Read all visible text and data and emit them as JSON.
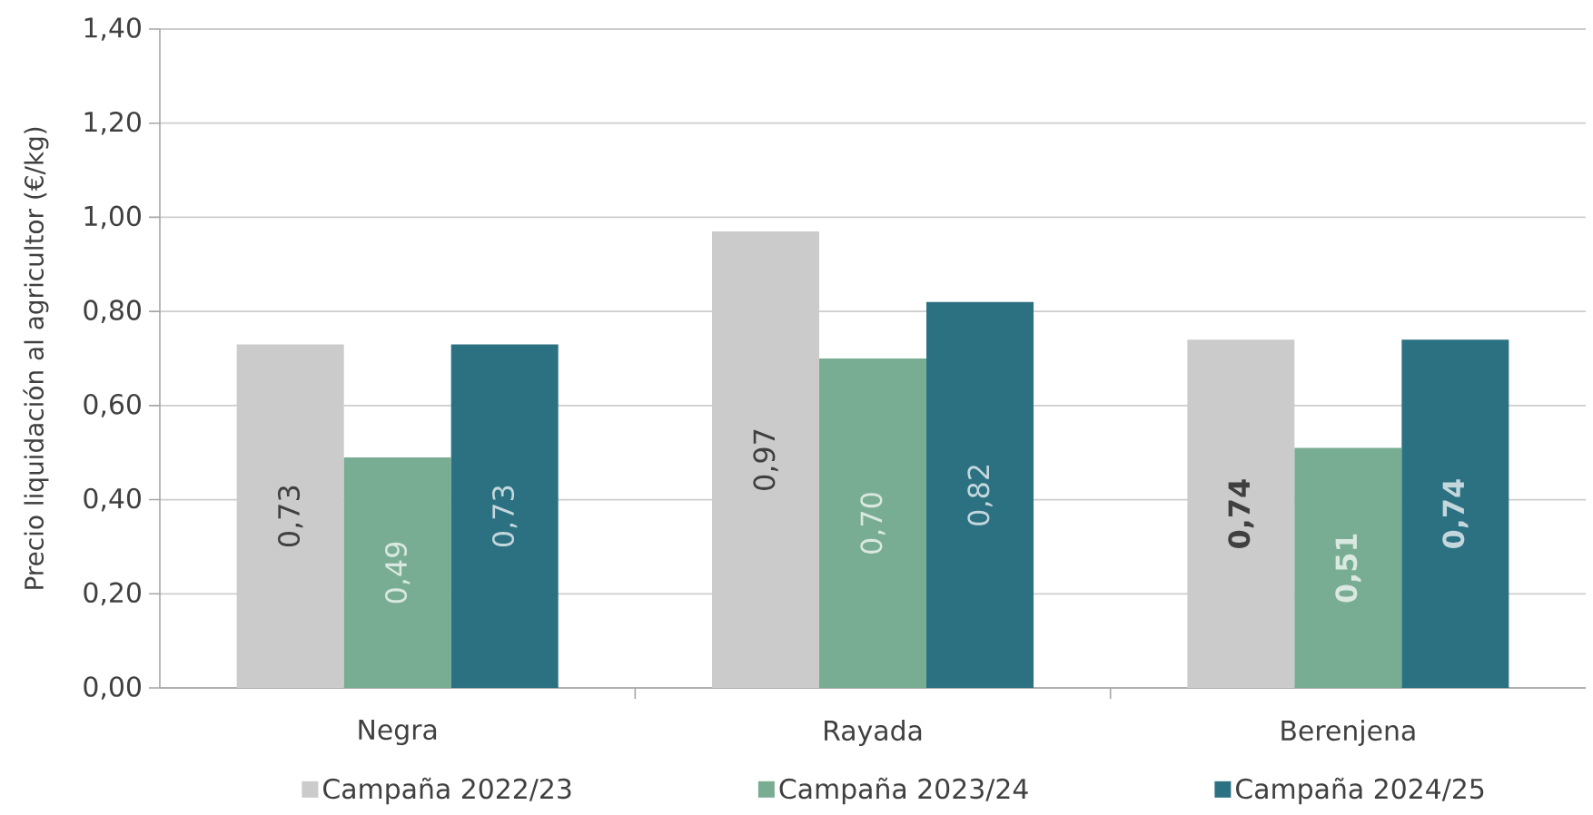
{
  "chart_data": {
    "type": "bar",
    "ylabel": "Precio liquidación al agricultor (€/kg)",
    "categories": [
      "Negra",
      "Rayada",
      "Berenjena"
    ],
    "series": [
      {
        "name": "Campaña 2022/23",
        "color": "#cbcbcb",
        "values": [
          0.73,
          0.97,
          0.74
        ],
        "value_labels": [
          "0,73",
          "0,97",
          "**0,74**"
        ]
      },
      {
        "name": "Campaña 2023/24",
        "color": "#79ad93",
        "values": [
          0.49,
          0.7,
          0.51
        ],
        "value_labels": [
          "0,49",
          "0,70",
          "**0,51**"
        ]
      },
      {
        "name": "Campaña 2024/25",
        "color": "#2c7182",
        "values": [
          0.73,
          0.82,
          0.74
        ],
        "value_labels": [
          "0,73",
          "0,82",
          "**0,74**"
        ]
      }
    ],
    "ylim": [
      0,
      1.4
    ],
    "yticks": [
      {
        "value": 0,
        "label": "0,00"
      },
      {
        "value": 0.2,
        "label": "0,20"
      },
      {
        "value": 0.4,
        "label": "0,40"
      },
      {
        "value": 0.6,
        "label": "0,60"
      },
      {
        "value": 0.8,
        "label": "0,80"
      },
      {
        "value": 1.0,
        "label": "1,00"
      },
      {
        "value": 1.2,
        "label": "1,20"
      },
      {
        "value": 1.4,
        "label": "1,40"
      }
    ],
    "grid": "y",
    "legend": "bottom"
  }
}
